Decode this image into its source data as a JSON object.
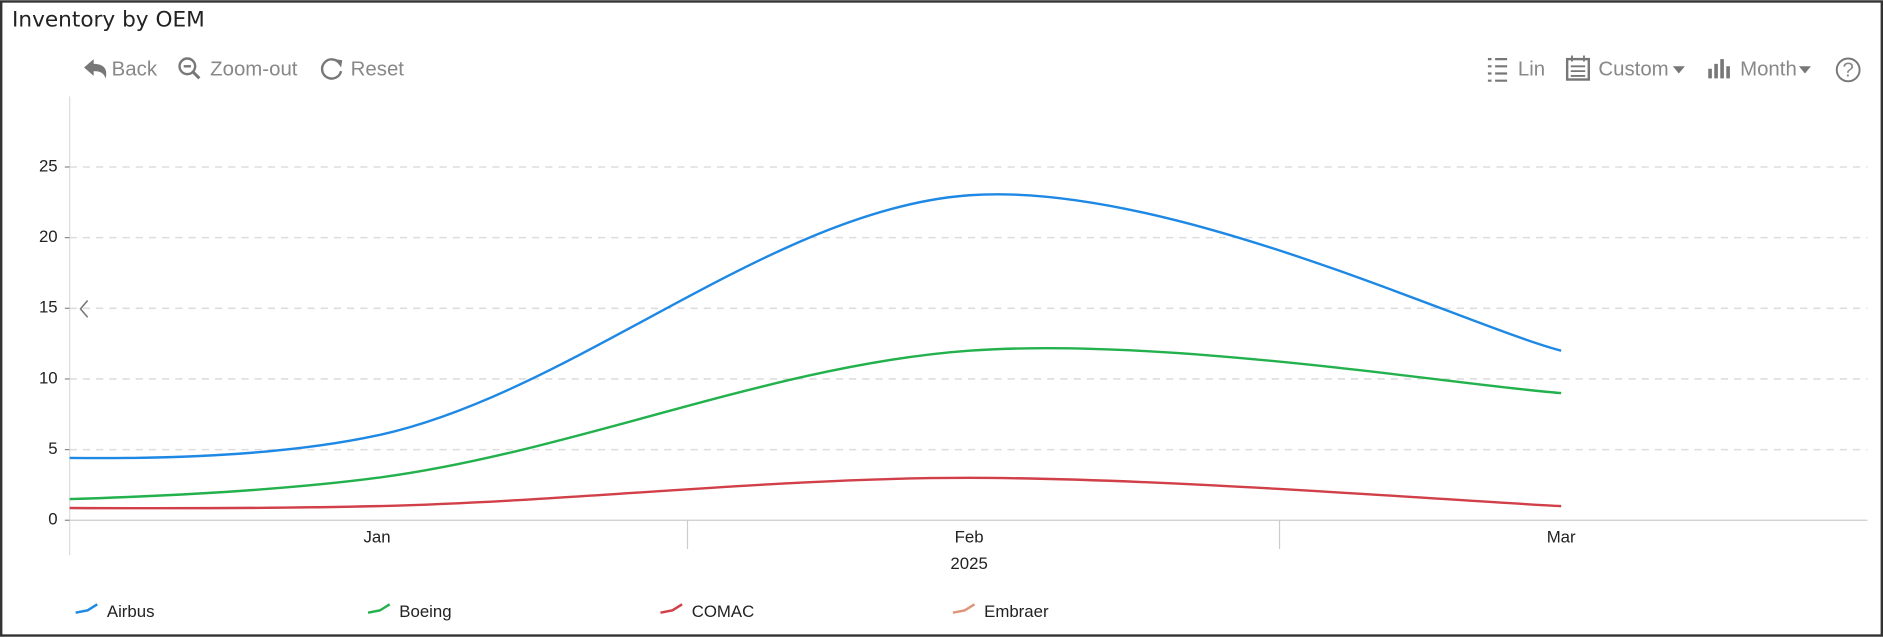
{
  "title": "Inventory by OEM",
  "toolbar": {
    "back": "Back",
    "zoom_out": "Zoom-out",
    "reset": "Reset",
    "scale": "Lin",
    "range": "Custom",
    "period": "Month",
    "help": "?"
  },
  "chart_data": {
    "type": "line",
    "categories": [
      null,
      "Jan",
      "Feb",
      "Mar"
    ],
    "x_group_label": "2025",
    "series": [
      {
        "name": "Airbus",
        "color": "#1e88e5",
        "values": [
          5,
          6,
          23,
          12
        ]
      },
      {
        "name": "Boeing",
        "color": "#22b14c",
        "values": [
          1,
          3,
          12,
          9
        ]
      },
      {
        "name": "COMAC",
        "color": "#d13f48",
        "values": [
          1,
          1,
          3,
          1
        ]
      },
      {
        "name": "Embraer",
        "color": "#e0957a",
        "values": [
          null,
          null,
          null,
          null
        ]
      }
    ],
    "ylim": [
      0,
      30
    ],
    "yticks": [
      0,
      5,
      10,
      15,
      20,
      25
    ],
    "grid": true
  }
}
